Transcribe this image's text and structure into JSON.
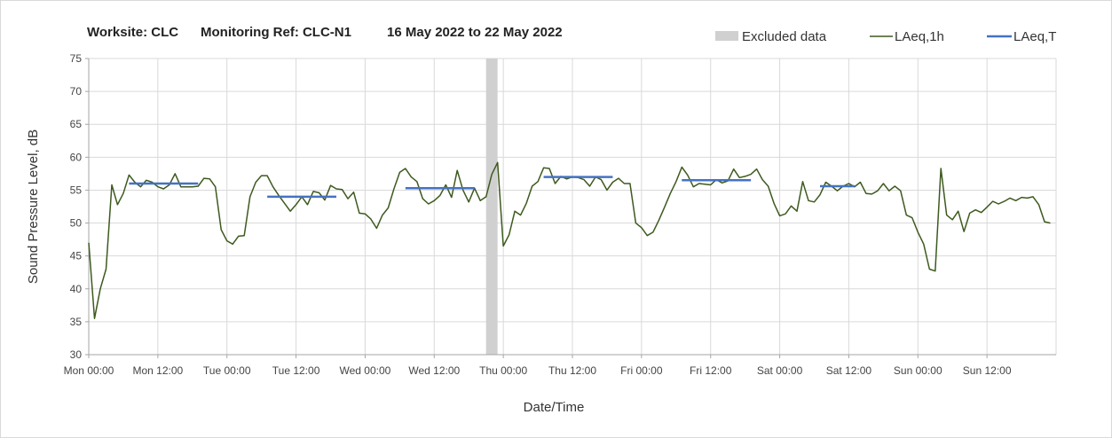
{
  "chart_data": {
    "type": "line",
    "title": "Worksite: CLC   Monitoring Ref: CLC-N1     16 May 2022 to 22 May 2022",
    "title_parts": [
      "Worksite: CLC",
      "Monitoring Ref: CLC-N1",
      "16 May 2022 to 22 May 2022"
    ],
    "xlabel": "Date/Time",
    "ylabel": "Sound Pressure Level, dB",
    "ylim": [
      30,
      75
    ],
    "yticks": [
      "30",
      "35",
      "40",
      "45",
      "50",
      "55",
      "60",
      "65",
      "70",
      "75"
    ],
    "xlim": [
      "Mon 00:00",
      "Sun 24:00"
    ],
    "xticks": [
      "Mon 00:00",
      "Mon 12:00",
      "Tue 00:00",
      "Tue 12:00",
      "Wed 00:00",
      "Wed 12:00",
      "Thu 00:00",
      "Thu 12:00",
      "Fri 00:00",
      "Fri 12:00",
      "Sat 00:00",
      "Sat 12:00",
      "Sun 00:00",
      "Sun 12:00"
    ],
    "grid": true,
    "legend_position": "top-right",
    "legend": [
      "Excluded data",
      "LAeq,1h",
      "LAeq,T"
    ],
    "colors": {
      "laeq1h": "#3d5a1e",
      "laeqT": "#4472c4",
      "excluded": "#d0d0d0",
      "grid": "#d9d9d9",
      "axis": "#a6a6a6"
    },
    "excluded_data": [
      {
        "start": "Wed 21:00",
        "end": "Wed 23:00"
      }
    ],
    "series": [
      {
        "name": "LAeq,1h",
        "x_start": "Mon 00:00",
        "x_step": "1 hour",
        "values": [
          47.0,
          35.5,
          40.0,
          43.0,
          55.8,
          52.8,
          54.5,
          57.3,
          56.2,
          55.5,
          56.5,
          56.2,
          55.5,
          55.2,
          55.8,
          57.5,
          55.5,
          55.5,
          55.5,
          55.6,
          56.8,
          56.7,
          55.5,
          49.0,
          47.3,
          46.8,
          48.0,
          48.1,
          54.0,
          56.2,
          57.2,
          57.2,
          55.5,
          54.2,
          53.0,
          51.8,
          52.8,
          54.0,
          52.8,
          54.8,
          54.6,
          53.5,
          55.7,
          55.2,
          55.1,
          53.7,
          54.7,
          51.5,
          51.4,
          50.6,
          49.2,
          51.2,
          52.3,
          55.2,
          57.7,
          58.3,
          57.0,
          56.3,
          53.7,
          52.9,
          53.4,
          54.2,
          55.8,
          53.9,
          58.0,
          55.0,
          53.2,
          55.3,
          53.4,
          54.0,
          57.4,
          59.2,
          46.5,
          48.2,
          51.8,
          51.2,
          53.0,
          55.6,
          56.3,
          58.4,
          58.3,
          56.0,
          57.1,
          56.7,
          57.0,
          56.9,
          56.6,
          55.6,
          57.0,
          56.6,
          55.0,
          56.2,
          56.8,
          56.0,
          56.0,
          50.0,
          49.3,
          48.1,
          48.6,
          50.4,
          52.4,
          54.5,
          56.3,
          58.5,
          57.3,
          55.5,
          56.0,
          55.9,
          55.8,
          56.6,
          56.1,
          56.4,
          58.2,
          56.9,
          57.1,
          57.4,
          58.2,
          56.6,
          55.6,
          53.0,
          51.1,
          51.4,
          52.6,
          51.8,
          56.3,
          53.4,
          53.2,
          54.3,
          56.2,
          55.6,
          54.9,
          55.6,
          56.0,
          55.5,
          56.2,
          54.5,
          54.4,
          54.9,
          56.0,
          54.9,
          55.6,
          54.9,
          51.2,
          50.8,
          48.6,
          46.8,
          43.0,
          42.7,
          58.3,
          51.2,
          50.5,
          51.8,
          48.7,
          51.5,
          52.0,
          51.6,
          52.4,
          53.3,
          52.9,
          53.3,
          53.8,
          53.4,
          53.9,
          53.8,
          54.0,
          52.8,
          50.2,
          50.0
        ]
      },
      {
        "name": "LAeq,T",
        "segments": [
          {
            "start": "Mon 07:00",
            "end": "Mon 19:00",
            "value": 56.0
          },
          {
            "start": "Tue 07:00",
            "end": "Tue 19:00",
            "value": 54.0
          },
          {
            "start": "Wed 07:00",
            "end": "Wed 19:00",
            "value": 55.3
          },
          {
            "start": "Thu 07:00",
            "end": "Thu 19:00",
            "value": 57.0
          },
          {
            "start": "Fri 07:00",
            "end": "Fri 19:00",
            "value": 56.5
          },
          {
            "start": "Sat 07:00",
            "end": "Sat 13:00",
            "value": 55.6
          }
        ]
      }
    ]
  }
}
